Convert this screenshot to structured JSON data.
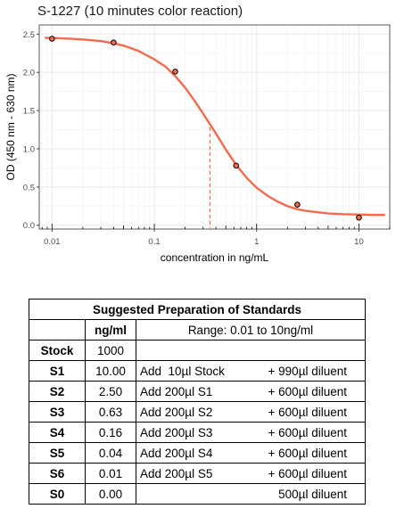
{
  "chart_data": {
    "type": "scatter",
    "title": "S-1227 (10 minutes color reaction)",
    "xlabel": "concentration in ng/mL",
    "ylabel": "OD (450 nm - 630 nm)",
    "x_scale": "log",
    "xlim": [
      0.0075,
      20
    ],
    "ylim": [
      -0.05,
      2.62
    ],
    "x_ticks": [
      0.01,
      0.1,
      1,
      10
    ],
    "x_tick_labels": [
      "0.01",
      "0.1",
      "1",
      "10"
    ],
    "y_ticks": [
      0,
      0.5,
      1,
      1.5,
      2,
      2.5
    ],
    "y_tick_labels": [
      "0.0",
      "0.5",
      "1.0",
      "1.5",
      "2.0",
      "2.5"
    ],
    "grid": true,
    "points": {
      "x": [
        0.01,
        0.04,
        0.16,
        0.63,
        2.5,
        10
      ],
      "y": [
        2.44,
        2.39,
        2.01,
        0.78,
        0.27,
        0.1
      ]
    },
    "fit_curve": {
      "x": [
        0.0085,
        0.01,
        0.015,
        0.02,
        0.03,
        0.04,
        0.05,
        0.07,
        0.1,
        0.13,
        0.16,
        0.2,
        0.25,
        0.3,
        0.35,
        0.4,
        0.5,
        0.63,
        0.8,
        1,
        1.3,
        1.6,
        2,
        2.5,
        3,
        4,
        5,
        7,
        10,
        14,
        18
      ],
      "y": [
        2.45,
        2.45,
        2.44,
        2.43,
        2.41,
        2.38,
        2.35,
        2.28,
        2.17,
        2.07,
        1.95,
        1.8,
        1.62,
        1.46,
        1.32,
        1.2,
        0.99,
        0.79,
        0.62,
        0.49,
        0.38,
        0.31,
        0.25,
        0.21,
        0.19,
        0.17,
        0.155,
        0.145,
        0.14,
        0.135,
        0.135
      ]
    },
    "ec50_line": {
      "x": 0.35,
      "y_top": 1.28
    },
    "colors": {
      "curve": "#f26b4f",
      "point_fill": "#f26b4f",
      "point_stroke": "#000000",
      "panel_bg": "#ffffff",
      "grid": "#ebebeb",
      "border": "#333333"
    }
  },
  "table": {
    "title": "Suggested Preparation of Standards",
    "header": {
      "unit": "ng/ml",
      "range": "Range: 0.01 to 10ng/ml"
    },
    "stock": {
      "label": "Stock",
      "value": "1000"
    },
    "rows": [
      {
        "label": "S1",
        "value": "10.00",
        "add": "Add  10µl Stock",
        "diluent": "+ 990µl diluent"
      },
      {
        "label": "S2",
        "value": "2.50",
        "add": "Add 200µl S1",
        "diluent": "+ 600µl diluent"
      },
      {
        "label": "S3",
        "value": "0.63",
        "add": "Add 200µl S2",
        "diluent": "+ 600µl diluent"
      },
      {
        "label": "S4",
        "value": "0.16",
        "add": "Add 200µl S3",
        "diluent": "+ 600µl diluent"
      },
      {
        "label": "S5",
        "value": "0.04",
        "add": "Add 200µl S4",
        "diluent": "+ 600µl diluent"
      },
      {
        "label": "S6",
        "value": "0.01",
        "add": "Add 200µl S5",
        "diluent": "+ 600µl diluent"
      },
      {
        "label": "S0",
        "value": "0.00",
        "add": "",
        "diluent": "500µl diluent"
      }
    ]
  }
}
